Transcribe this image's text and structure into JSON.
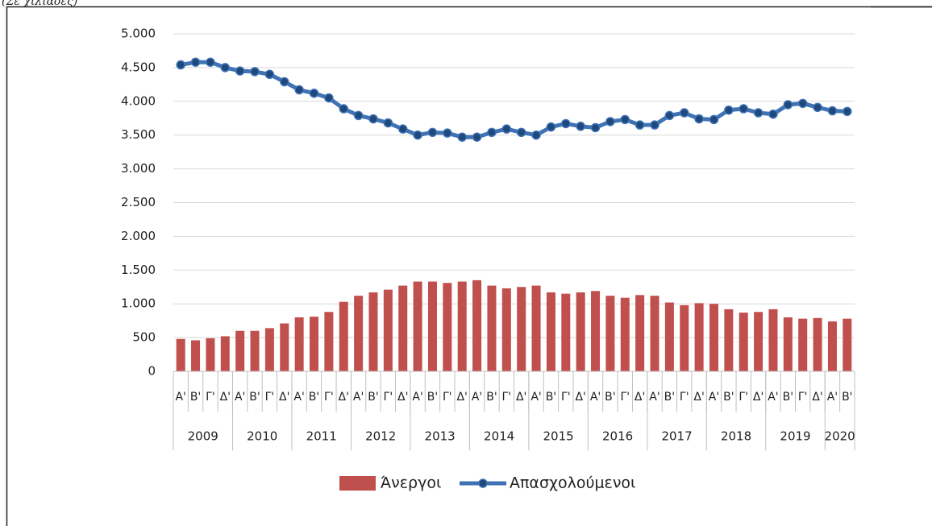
{
  "chart_data": {
    "type": "bar",
    "subtitle": "(Σε χιλιάδες)",
    "categories": [
      "Α'",
      "Β'",
      "Γ'",
      "Δ'",
      "Α'",
      "Β'",
      "Γ'",
      "Δ'",
      "Α'",
      "Β'",
      "Γ'",
      "Δ'",
      "Α'",
      "Β'",
      "Γ'",
      "Δ'",
      "Α'",
      "Β'",
      "Γ'",
      "Δ'",
      "Α'",
      "Β'",
      "Γ'",
      "Δ'",
      "Α'",
      "Β'",
      "Γ'",
      "Δ'",
      "Α'",
      "Β'",
      "Γ'",
      "Δ'",
      "Α'",
      "Β'",
      "Γ'",
      "Δ'",
      "Α'",
      "Β'",
      "Γ'",
      "Δ'",
      "Α'",
      "Β'",
      "Γ'",
      "Δ'",
      "Α'",
      "Β'"
    ],
    "groups": [
      {
        "label": "2009",
        "count": 4
      },
      {
        "label": "2010",
        "count": 4
      },
      {
        "label": "2011",
        "count": 4
      },
      {
        "label": "2012",
        "count": 4
      },
      {
        "label": "2013",
        "count": 4
      },
      {
        "label": "2014",
        "count": 4
      },
      {
        "label": "2015",
        "count": 4
      },
      {
        "label": "2016",
        "count": 4
      },
      {
        "label": "2017",
        "count": 4
      },
      {
        "label": "2018",
        "count": 4
      },
      {
        "label": "2019",
        "count": 4
      },
      {
        "label": "2020",
        "count": 2
      }
    ],
    "series": [
      {
        "name": "Άνεργοι",
        "type": "bar",
        "color": "#c0504d",
        "values": [
          480,
          460,
          490,
          520,
          600,
          600,
          640,
          710,
          800,
          810,
          880,
          1030,
          1120,
          1170,
          1210,
          1270,
          1330,
          1330,
          1310,
          1330,
          1350,
          1270,
          1230,
          1250,
          1270,
          1170,
          1150,
          1170,
          1190,
          1120,
          1090,
          1130,
          1120,
          1020,
          980,
          1010,
          1000,
          920,
          870,
          880,
          920,
          800,
          780,
          790,
          740,
          780
        ]
      },
      {
        "name": "Απασχολούμενοι",
        "type": "line",
        "color": "#3f73b5",
        "marker_color": "#1f497d",
        "values": [
          4540,
          4580,
          4580,
          4500,
          4450,
          4440,
          4400,
          4290,
          4170,
          4120,
          4050,
          3890,
          3790,
          3740,
          3680,
          3590,
          3500,
          3540,
          3530,
          3470,
          3470,
          3540,
          3590,
          3540,
          3500,
          3620,
          3670,
          3630,
          3610,
          3700,
          3730,
          3650,
          3650,
          3790,
          3830,
          3740,
          3730,
          3870,
          3890,
          3830,
          3810,
          3950,
          3970,
          3910,
          3860,
          3850
        ]
      }
    ],
    "ylim": [
      0,
      5000
    ],
    "yticks": [
      0,
      500,
      {
        "value": 1000,
        "label": "1.000"
      },
      {
        "value": 1500,
        "label": "1.500"
      },
      {
        "value": 2000,
        "label": "2.000"
      },
      {
        "value": 2500,
        "label": "2.500"
      },
      {
        "value": 3000,
        "label": "3.000"
      },
      {
        "value": 3500,
        "label": "3.500"
      },
      {
        "value": 4000,
        "label": "4.000"
      },
      {
        "value": 4500,
        "label": "4.500"
      },
      {
        "value": 5000,
        "label": "5.000"
      }
    ],
    "grid": true,
    "legend": "bottom"
  }
}
